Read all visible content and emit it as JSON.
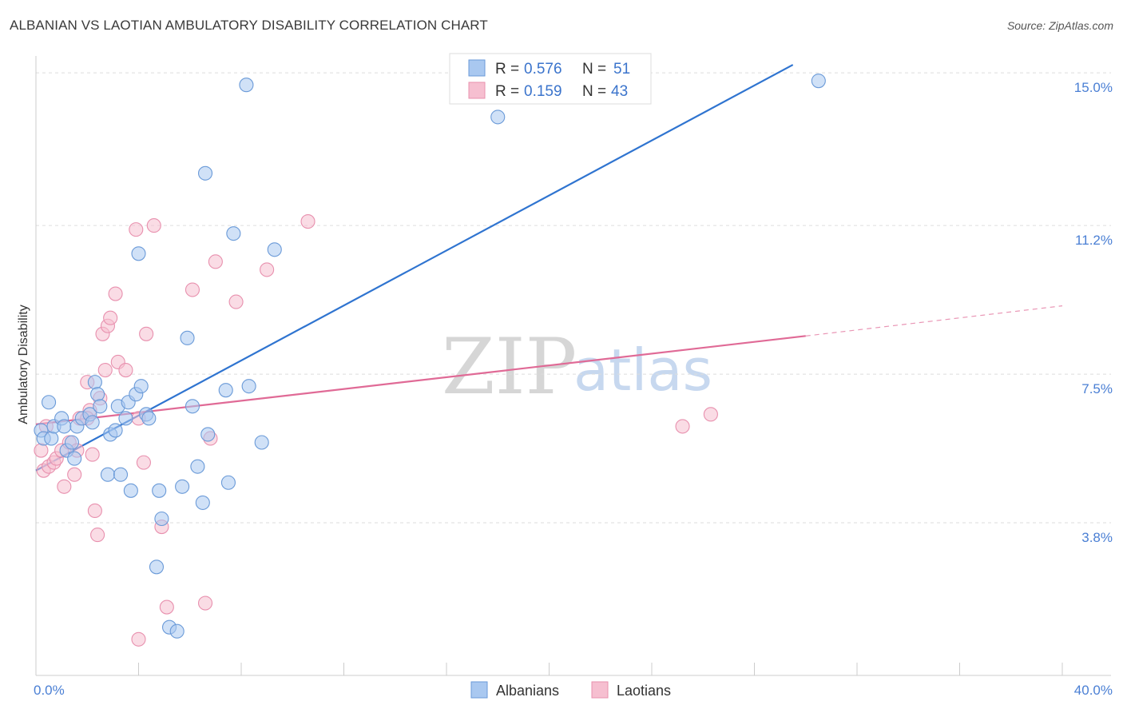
{
  "title": "ALBANIAN VS LAOTIAN AMBULATORY DISABILITY CORRELATION CHART",
  "source": "Source: ZipAtlas.com",
  "watermark": {
    "zip": "ZIP",
    "atlas": "atlas"
  },
  "colors": {
    "blue_fill": "#a9c8f0",
    "blue_stroke": "#6a9ad8",
    "blue_line": "#2f74d0",
    "pink_fill": "#f6bfd0",
    "pink_stroke": "#e890ae",
    "pink_line": "#e06a96",
    "grid": "#dddddd",
    "axis_text": "#4a7fd4"
  },
  "chart_data": {
    "type": "scatter",
    "xlabel": "",
    "ylabel": "Ambulatory Disability",
    "xlim": [
      0,
      40
    ],
    "ylim": [
      0,
      15.5
    ],
    "x_tick_labels": [
      "0.0%",
      "40.0%"
    ],
    "y_ticks": [
      3.8,
      7.5,
      11.2,
      15.0
    ],
    "y_tick_labels": [
      "3.8%",
      "7.5%",
      "11.2%",
      "15.0%"
    ],
    "legend": [
      {
        "series": "Albanians",
        "r_label": "R =",
        "r": "0.576",
        "n_label": "N =",
        "n": "51"
      },
      {
        "series": "Laotians",
        "r_label": "R =",
        "r": "0.159",
        "n_label": "N =",
        "n": "43"
      }
    ],
    "series": [
      {
        "name": "Albanians",
        "color": "#a9c8f0",
        "trend": {
          "x0": 0.0,
          "y0": 5.1,
          "x1": 29.5,
          "y1": 15.2,
          "dashed_to": null
        },
        "points": [
          [
            0.2,
            6.1
          ],
          [
            0.3,
            5.9
          ],
          [
            0.5,
            6.8
          ],
          [
            0.6,
            5.9
          ],
          [
            0.7,
            6.2
          ],
          [
            1.0,
            6.4
          ],
          [
            1.1,
            6.2
          ],
          [
            1.2,
            5.6
          ],
          [
            1.4,
            5.8
          ],
          [
            1.5,
            5.4
          ],
          [
            1.6,
            6.2
          ],
          [
            1.8,
            6.4
          ],
          [
            2.1,
            6.5
          ],
          [
            2.2,
            6.3
          ],
          [
            2.3,
            7.3
          ],
          [
            2.4,
            7.0
          ],
          [
            2.5,
            6.7
          ],
          [
            2.8,
            5.0
          ],
          [
            2.9,
            6.0
          ],
          [
            3.1,
            6.1
          ],
          [
            3.2,
            6.7
          ],
          [
            3.3,
            5.0
          ],
          [
            3.5,
            6.4
          ],
          [
            3.6,
            6.8
          ],
          [
            3.7,
            4.6
          ],
          [
            3.9,
            7.0
          ],
          [
            4.0,
            10.5
          ],
          [
            4.1,
            7.2
          ],
          [
            4.3,
            6.5
          ],
          [
            4.4,
            6.4
          ],
          [
            4.8,
            4.6
          ],
          [
            4.9,
            3.9
          ],
          [
            5.2,
            1.2
          ],
          [
            5.5,
            1.1
          ],
          [
            5.7,
            4.7
          ],
          [
            5.9,
            8.4
          ],
          [
            6.1,
            6.7
          ],
          [
            6.3,
            5.2
          ],
          [
            6.5,
            4.3
          ],
          [
            6.6,
            12.5
          ],
          [
            6.7,
            6.0
          ],
          [
            7.4,
            7.1
          ],
          [
            7.5,
            4.8
          ],
          [
            7.7,
            11.0
          ],
          [
            4.7,
            2.7
          ],
          [
            8.2,
            14.7
          ],
          [
            8.3,
            7.2
          ],
          [
            8.8,
            5.8
          ],
          [
            9.3,
            10.6
          ],
          [
            18.0,
            13.9
          ],
          [
            30.5,
            14.8
          ]
        ]
      },
      {
        "name": "Laotians",
        "color": "#f6bfd0",
        "trend": {
          "x0": 0.0,
          "y0": 6.25,
          "x1": 30.0,
          "y1": 8.45,
          "dashed_to": [
            40.0,
            9.2
          ]
        },
        "points": [
          [
            0.2,
            5.6
          ],
          [
            0.3,
            5.1
          ],
          [
            0.4,
            6.2
          ],
          [
            0.5,
            5.2
          ],
          [
            0.7,
            5.3
          ],
          [
            0.8,
            5.4
          ],
          [
            1.0,
            5.6
          ],
          [
            1.1,
            4.7
          ],
          [
            1.3,
            5.8
          ],
          [
            1.5,
            5.0
          ],
          [
            1.6,
            5.6
          ],
          [
            1.7,
            6.4
          ],
          [
            2.0,
            7.3
          ],
          [
            2.1,
            6.6
          ],
          [
            2.2,
            5.5
          ],
          [
            2.3,
            4.1
          ],
          [
            2.4,
            3.5
          ],
          [
            2.5,
            6.9
          ],
          [
            2.6,
            8.5
          ],
          [
            2.7,
            7.6
          ],
          [
            2.8,
            8.7
          ],
          [
            2.9,
            8.9
          ],
          [
            3.1,
            9.5
          ],
          [
            3.2,
            7.8
          ],
          [
            3.5,
            7.6
          ],
          [
            3.9,
            11.1
          ],
          [
            4.0,
            6.4
          ],
          [
            4.2,
            5.3
          ],
          [
            4.3,
            8.5
          ],
          [
            4.6,
            11.2
          ],
          [
            4.9,
            3.7
          ],
          [
            5.1,
            1.7
          ],
          [
            6.1,
            9.6
          ],
          [
            6.6,
            1.8
          ],
          [
            6.8,
            5.9
          ],
          [
            7.0,
            10.3
          ],
          [
            7.8,
            9.3
          ],
          [
            9.0,
            10.1
          ],
          [
            10.6,
            11.3
          ],
          [
            4.0,
            0.9
          ],
          [
            2.0,
            6.4
          ],
          [
            25.2,
            6.2
          ],
          [
            26.3,
            6.5
          ]
        ]
      }
    ]
  }
}
